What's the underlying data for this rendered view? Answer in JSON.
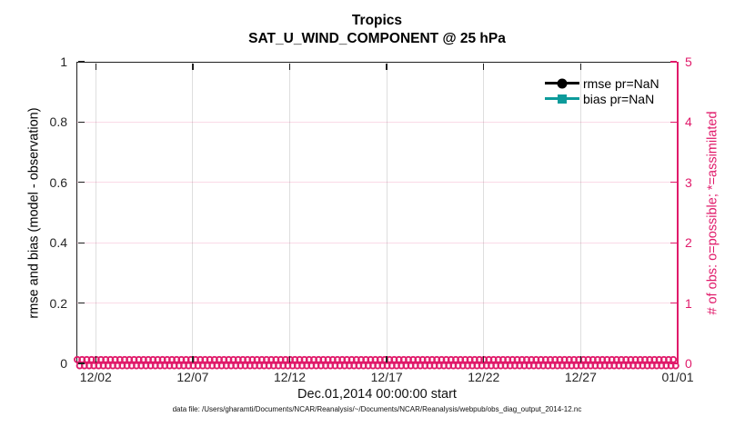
{
  "figure": {
    "title_line1": "Tropics",
    "title_line2": "SAT_U_WIND_COMPONENT @ 25 hPa",
    "footer": "data file: /Users/gharamti/Documents/NCAR/Reanalysis/~/Documents/NCAR/Reanalysis/webpub/obs_diag_output_2014-12.nc"
  },
  "left_axis": {
    "label": "rmse and bias (model - observation)",
    "ticks": [
      "1",
      "0.8",
      "0.6",
      "0.4",
      "0.2",
      "0"
    ],
    "color": "#262626"
  },
  "right_axis": {
    "label": "# of obs: o=possible; *=assimilated",
    "ticks": [
      "5",
      "4",
      "3",
      "2",
      "1",
      "0"
    ],
    "color": "#e01a6a"
  },
  "x_axis": {
    "ticks": [
      "12/02",
      "12/07",
      "12/12",
      "12/17",
      "12/22",
      "12/27",
      "01/01"
    ],
    "tick_day_offsets": [
      1,
      6,
      11,
      16,
      21,
      26,
      31
    ],
    "days_total": 31,
    "label": "Dec.01,2014 00:00:00 start"
  },
  "legend": {
    "items": [
      {
        "label": "rmse pr=NaN",
        "color": "#000000",
        "marker": "circle"
      },
      {
        "label": "bias pr=NaN",
        "color": "#0d9b9b",
        "marker": "square"
      }
    ]
  },
  "chart_data": {
    "type": "line",
    "title": "Tropics",
    "subtitle": "SAT_U_WIND_COMPONENT @ 25 hPa",
    "xlabel": "Dec.01,2014 00:00:00 start",
    "ylabel_left": "rmse and bias (model - observation)",
    "ylabel_right": "# of obs: o=possible; *=assimilated",
    "xlim": [
      "12/01 00:00",
      "01/01 00:00"
    ],
    "xticks": [
      "12/02",
      "12/07",
      "12/12",
      "12/17",
      "12/22",
      "12/27",
      "01/01"
    ],
    "ylim_left": [
      0,
      1
    ],
    "yticks_left": [
      0,
      0.2,
      0.4,
      0.6,
      0.8,
      1
    ],
    "ylim_right": [
      0,
      5
    ],
    "yticks_right": [
      0,
      1,
      2,
      3,
      4,
      5
    ],
    "grid": true,
    "legend_position": "top-right-inside",
    "series": [
      {
        "name": "rmse pr=NaN",
        "axis": "left",
        "marker": "circle",
        "color": "#000000",
        "values": "NaN - no curve drawn"
      },
      {
        "name": "bias pr=NaN",
        "axis": "left",
        "marker": "square",
        "color": "#0d9b9b",
        "values": "NaN - no curve drawn"
      },
      {
        "name": "# of obs possible (o markers)",
        "axis": "right",
        "marker": "o",
        "color": "#e01a6a",
        "constant_value": 0
      },
      {
        "name": "# of obs assimilated (* markers)",
        "axis": "right",
        "marker": "*",
        "color": "#e01a6a",
        "constant_value": 0
      }
    ]
  }
}
